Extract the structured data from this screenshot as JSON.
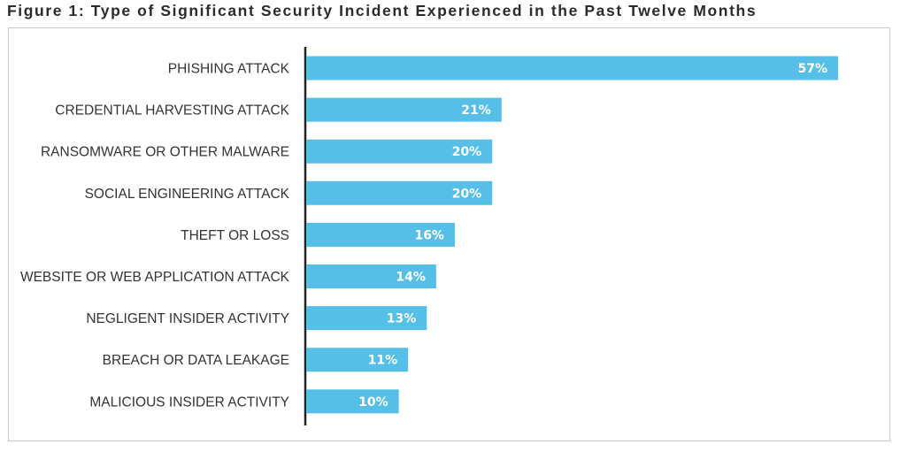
{
  "figure": {
    "title": "Figure 1: Type of Significant Security Incident Experienced in the Past Twelve Months"
  },
  "chart_data": {
    "type": "bar",
    "orientation": "horizontal",
    "categories": [
      "PHISHING ATTACK",
      "CREDENTIAL HARVESTING ATTACK",
      "RANSOMWARE OR OTHER MALWARE",
      "SOCIAL ENGINEERING ATTACK",
      "THEFT OR LOSS",
      "WEBSITE OR WEB APPLICATION ATTACK",
      "NEGLIGENT INSIDER ACTIVITY",
      "BREACH OR DATA LEAKAGE",
      "MALICIOUS INSIDER ACTIVITY"
    ],
    "values": [
      57,
      21,
      20,
      20,
      16,
      14,
      13,
      11,
      10
    ],
    "value_labels": [
      "57%",
      "21%",
      "20%",
      "20%",
      "16%",
      "14%",
      "13%",
      "11%",
      "10%"
    ],
    "bar_color": "#56BFE8",
    "axis_color": "#222222",
    "grid": false,
    "legend": "none"
  }
}
